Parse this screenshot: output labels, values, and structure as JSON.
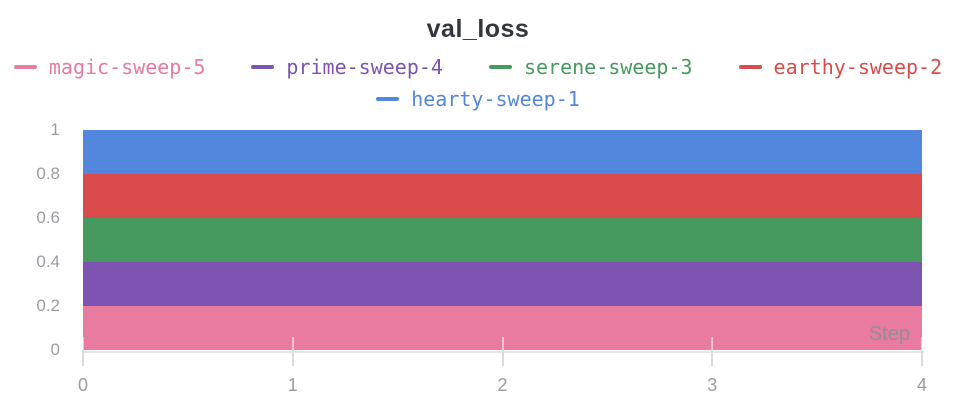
{
  "header": {
    "title": "val_loss"
  },
  "legend": {
    "items": [
      {
        "label": "magic-sweep-5",
        "color": "#E87B9F"
      },
      {
        "label": "prime-sweep-4",
        "color": "#7D54B2"
      },
      {
        "label": "serene-sweep-3",
        "color": "#479A5F"
      },
      {
        "label": "earthy-sweep-2",
        "color": "#DA4C4C"
      },
      {
        "label": "hearty-sweep-1",
        "color": "#5387DD"
      }
    ]
  },
  "axes": {
    "y_tick_labels": [
      "1",
      "0.8",
      "0.6",
      "0.4",
      "0.2",
      "0"
    ],
    "x_tick_labels": [
      "0",
      "1",
      "2",
      "3",
      "4"
    ],
    "x_axis_label": "Step"
  },
  "chart_data": {
    "type": "area",
    "title": "val_loss",
    "xlabel": "Step",
    "ylabel": "",
    "xlim": [
      0,
      4
    ],
    "ylim": [
      0,
      1
    ],
    "x_ticks": [
      0,
      1,
      2,
      3,
      4
    ],
    "y_ticks": [
      0,
      0.2,
      0.4,
      0.6,
      0.8,
      1
    ],
    "grid": false,
    "legend_position": "top-center-two-rows",
    "series": [
      {
        "name": "hearty-sweep-1",
        "color": "#5387DD",
        "x": [
          0,
          1,
          2,
          3,
          4
        ],
        "band_bottom": 0.8,
        "band_top": 1.0
      },
      {
        "name": "earthy-sweep-2",
        "color": "#DA4C4C",
        "x": [
          0,
          1,
          2,
          3,
          4
        ],
        "band_bottom": 0.6,
        "band_top": 0.8
      },
      {
        "name": "serene-sweep-3",
        "color": "#479A5F",
        "x": [
          0,
          1,
          2,
          3,
          4
        ],
        "band_bottom": 0.4,
        "band_top": 0.6
      },
      {
        "name": "prime-sweep-4",
        "color": "#7D54B2",
        "x": [
          0,
          1,
          2,
          3,
          4
        ],
        "band_bottom": 0.2,
        "band_top": 0.4
      },
      {
        "name": "magic-sweep-5",
        "color": "#E87B9F",
        "x": [
          0,
          1,
          2,
          3,
          4
        ],
        "band_bottom": 0.0,
        "band_top": 0.2
      }
    ],
    "note": "Each run renders as a constant full-width horizontal color band spanning x 0 to 4"
  },
  "colors": {
    "title_text": "#32373c",
    "axis_text": "#9b9ca3",
    "tick_line": "#d9dade",
    "axis_line": "#e4e5e9",
    "step_label": "#898e98"
  }
}
